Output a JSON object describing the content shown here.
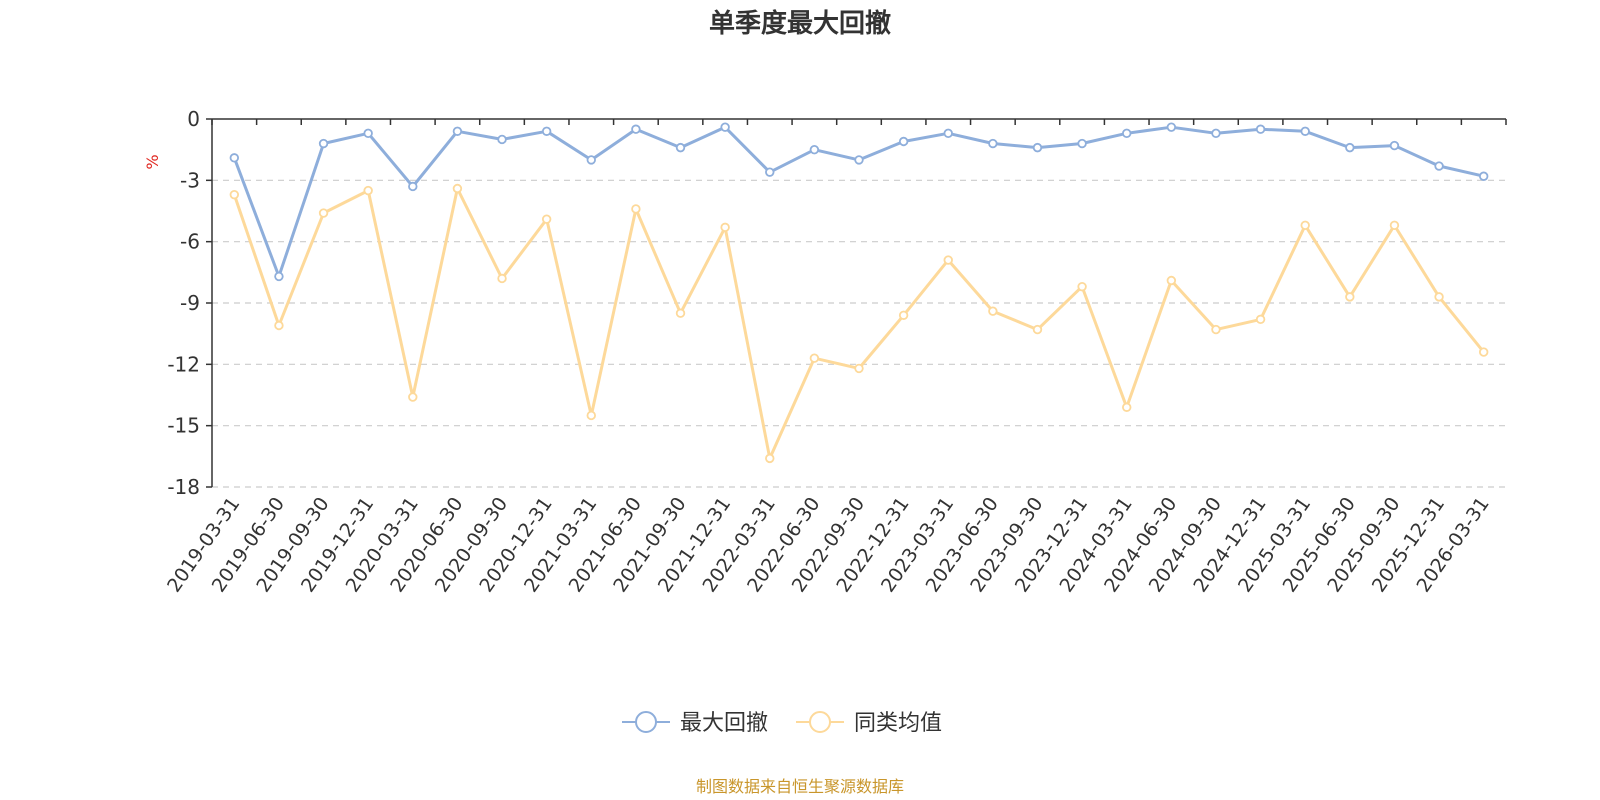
{
  "colors": {
    "series_1": "#8eaedb",
    "series_2": "#fdd99a",
    "axis": "#333333",
    "grid": "#cccccc",
    "unit": "#e0261f",
    "source": "#c9962b"
  },
  "chart_data": {
    "type": "line",
    "title": "单季度最大回撤",
    "ylabel": "%",
    "xlabel": "",
    "ylim": [
      -18,
      0
    ],
    "yticks": [
      0,
      -3,
      -6,
      -9,
      -12,
      -15,
      -18
    ],
    "grid": true,
    "legend_position": "bottom-center",
    "categories": [
      "2019-03-31",
      "2019-06-30",
      "2019-09-30",
      "2019-12-31",
      "2020-03-31",
      "2020-06-30",
      "2020-09-30",
      "2020-12-31",
      "2021-03-31",
      "2021-06-30",
      "2021-09-30",
      "2021-12-31",
      "2022-03-31",
      "2022-06-30",
      "2022-09-30",
      "2022-12-31",
      "2023-03-31",
      "2023-06-30",
      "2023-09-30",
      "2023-12-31",
      "2024-03-31",
      "2024-06-30",
      "2024-09-30",
      "2024-12-31",
      "2025-03-31",
      "2025-06-30",
      "2025-09-30",
      "2025-12-31",
      "2026-03-31"
    ],
    "series": [
      {
        "name": "最大回撤",
        "color": "#8eaedb",
        "values": [
          -1.9,
          -7.7,
          -1.2,
          -0.7,
          -3.3,
          -0.6,
          -1.0,
          -0.6,
          -2.0,
          -0.5,
          -1.4,
          -0.4,
          -2.6,
          -1.5,
          -2.0,
          -1.1,
          -0.7,
          -1.2,
          -1.4,
          -1.2,
          -0.7,
          -0.4,
          -0.7,
          -0.5,
          -0.6,
          -1.4,
          -1.3,
          -2.3,
          -2.8
        ]
      },
      {
        "name": "同类均值",
        "color": "#fdd99a",
        "values": [
          -3.7,
          -10.1,
          -4.6,
          -3.5,
          -13.6,
          -3.4,
          -7.8,
          -4.9,
          -14.5,
          -4.4,
          -9.5,
          -5.3,
          -16.6,
          -11.7,
          -12.2,
          -9.6,
          -6.9,
          -9.4,
          -10.3,
          -8.2,
          -14.1,
          -7.9,
          -10.3,
          -9.8,
          -5.2,
          -8.7,
          -5.2,
          -8.7,
          -11.4
        ]
      }
    ],
    "source_note": "制图数据来自恒生聚源数据库"
  }
}
